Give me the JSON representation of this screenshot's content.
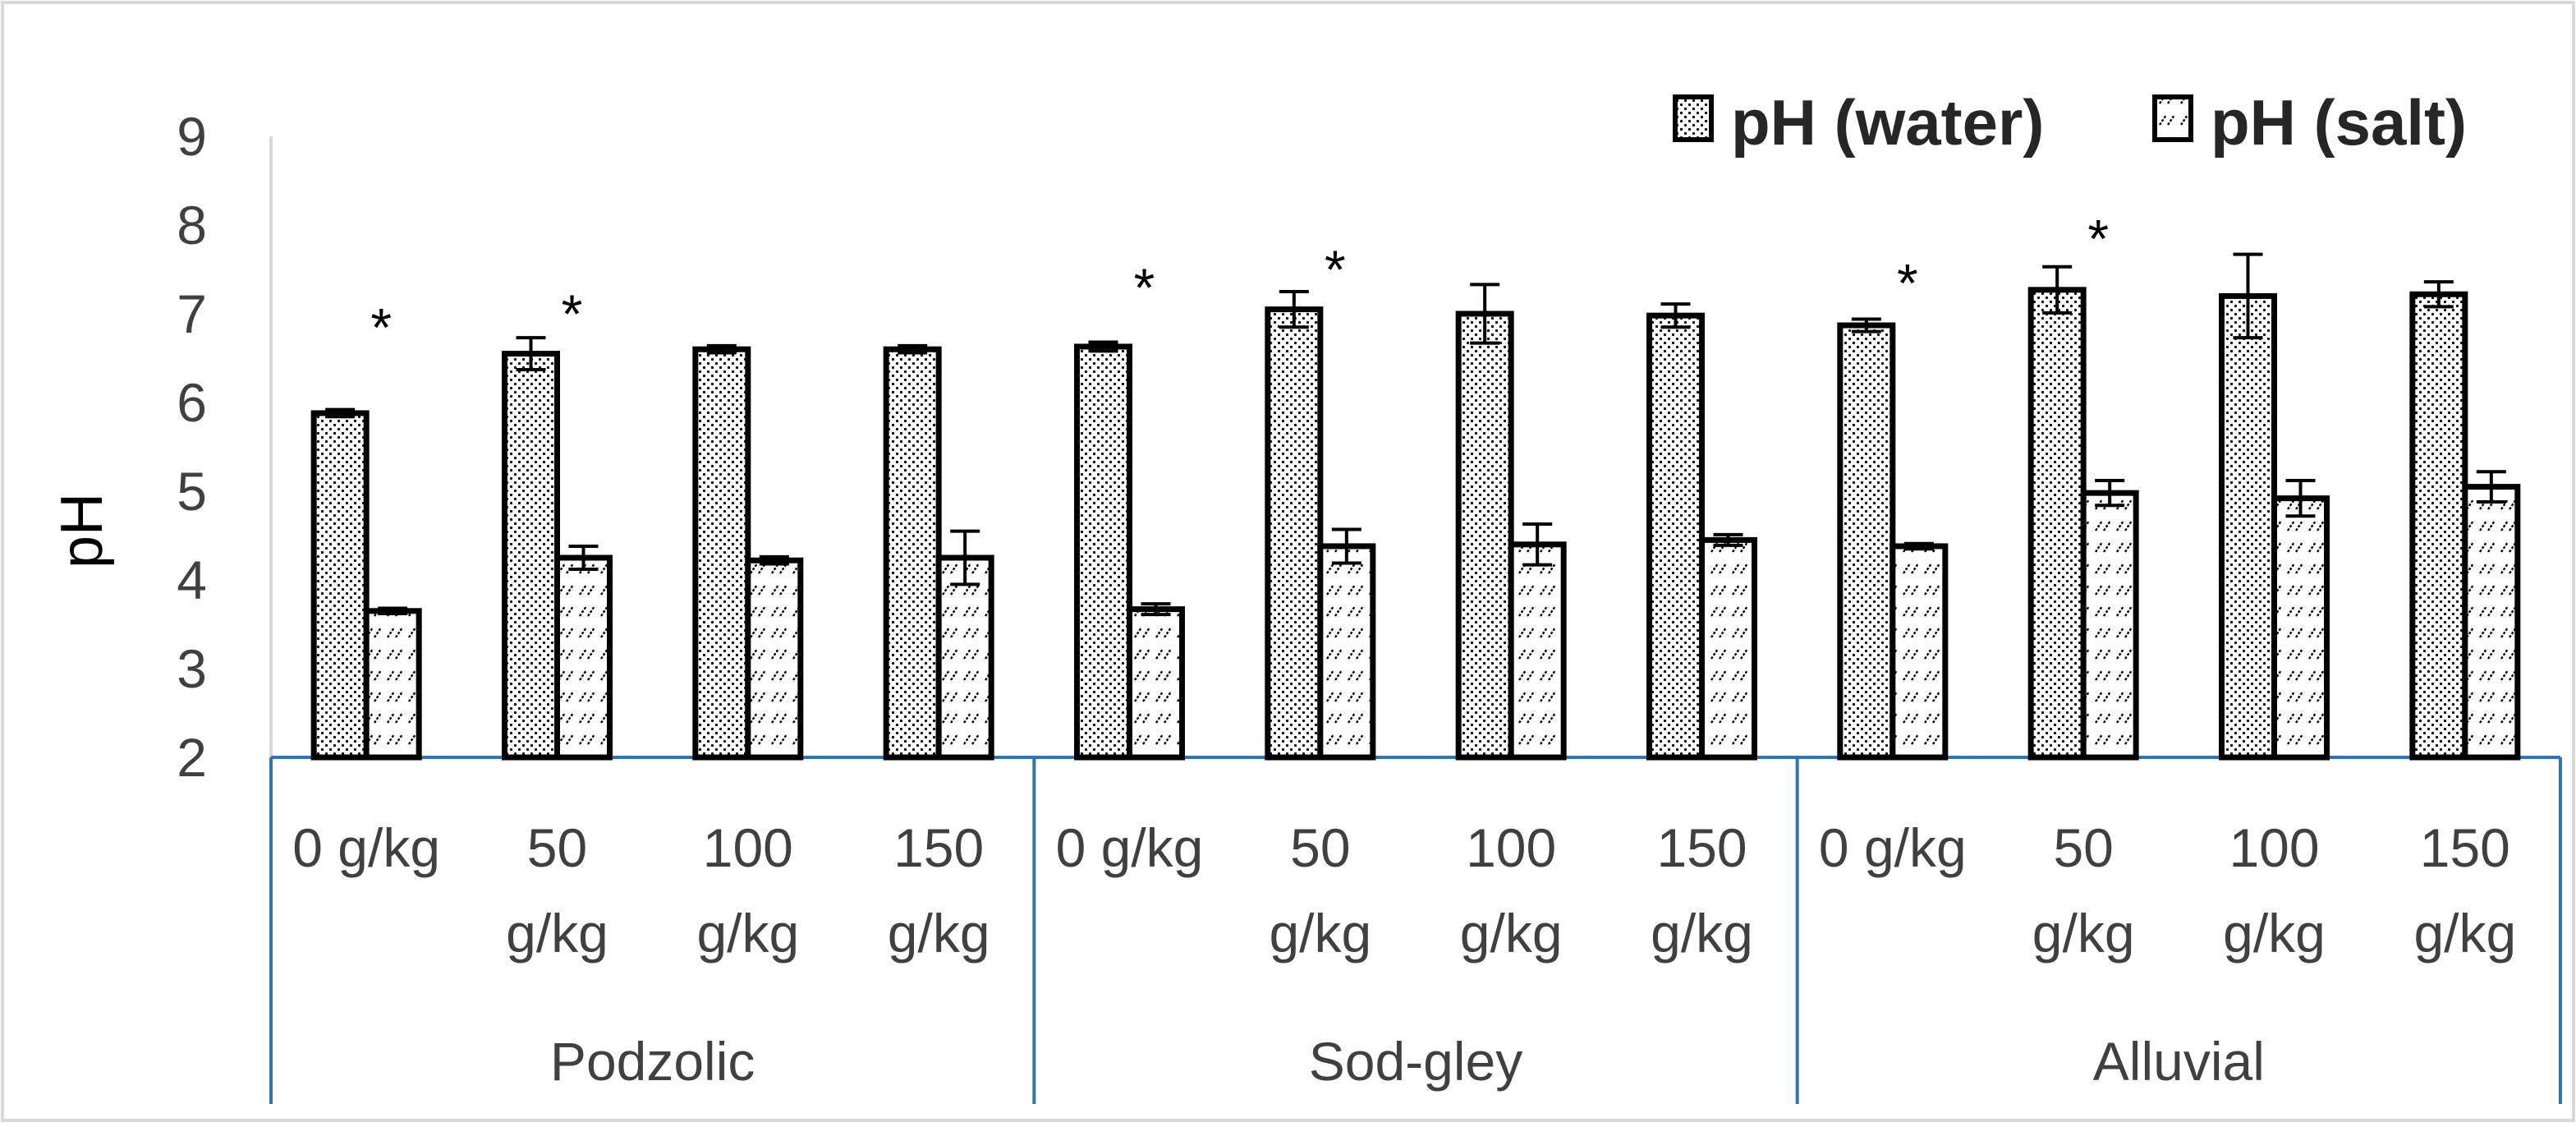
{
  "chart_data": {
    "type": "bar",
    "title": "",
    "xlabel": "",
    "ylabel": "pH",
    "ylim": [
      2,
      9
    ],
    "yticks": [
      "2",
      "3",
      "4",
      "5",
      "6",
      "7",
      "8",
      "9"
    ],
    "grid": false,
    "legend_position": "top-right",
    "groups": [
      {
        "name": "Podzolic",
        "categories": [
          {
            "line1": "0 g/kg",
            "line2": ""
          },
          {
            "line1": "50",
            "line2": "g/kg"
          },
          {
            "line1": "100",
            "line2": "g/kg"
          },
          {
            "line1": "150",
            "line2": "g/kg"
          }
        ]
      },
      {
        "name": "Sod-gley",
        "categories": [
          {
            "line1": "0 g/kg",
            "line2": ""
          },
          {
            "line1": "50",
            "line2": "g/kg"
          },
          {
            "line1": "100",
            "line2": "g/kg"
          },
          {
            "line1": "150",
            "line2": "g/kg"
          }
        ]
      },
      {
        "name": "Alluvial",
        "categories": [
          {
            "line1": "0 g/kg",
            "line2": ""
          },
          {
            "line1": "50",
            "line2": "g/kg"
          },
          {
            "line1": "100",
            "line2": "g/kg"
          },
          {
            "line1": "150",
            "line2": "g/kg"
          }
        ]
      }
    ],
    "series": [
      {
        "name": "pH (water)",
        "pattern": "dots",
        "values": [
          5.88,
          6.55,
          6.6,
          6.6,
          6.63,
          7.05,
          7.0,
          6.98,
          6.87,
          7.27,
          7.2,
          7.22
        ],
        "errors": [
          0.04,
          0.18,
          0.04,
          0.04,
          0.05,
          0.2,
          0.33,
          0.13,
          0.07,
          0.26,
          0.47,
          0.14
        ]
      },
      {
        "name": "pH (salt)",
        "pattern": "hatch",
        "values": [
          3.65,
          4.25,
          4.22,
          4.25,
          3.67,
          4.38,
          4.4,
          4.45,
          4.38,
          4.98,
          4.92,
          5.05
        ],
        "errors": [
          0.03,
          0.13,
          0.04,
          0.3,
          0.06,
          0.19,
          0.23,
          0.06,
          0.03,
          0.14,
          0.2,
          0.17
        ]
      }
    ],
    "annotations": [
      {
        "text": "*",
        "category_index": 0,
        "value": 6.95
      },
      {
        "text": "*",
        "category_index": 1,
        "value": 7.1
      },
      {
        "text": "*",
        "category_index": 4,
        "value": 7.4
      },
      {
        "text": "*",
        "category_index": 5,
        "value": 7.6
      },
      {
        "text": "*",
        "category_index": 8,
        "value": 7.45
      },
      {
        "text": "*",
        "category_index": 9,
        "value": 7.95
      }
    ]
  }
}
